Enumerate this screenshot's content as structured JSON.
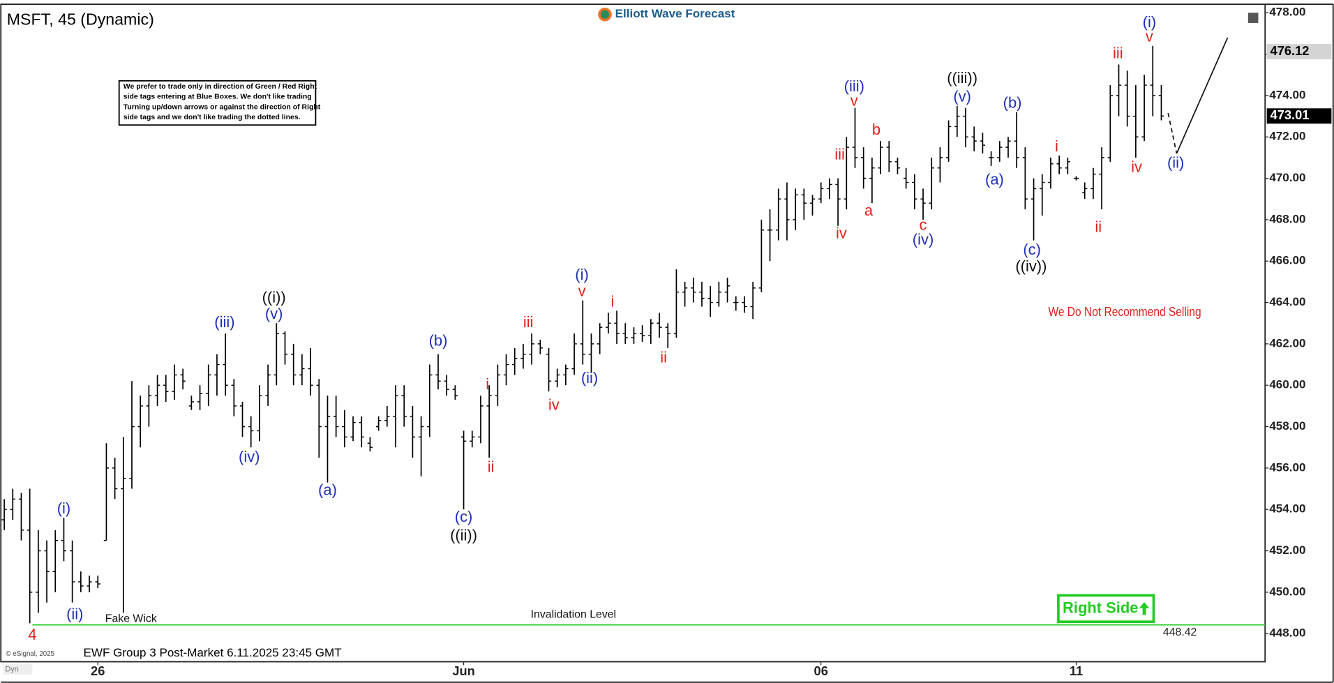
{
  "chart_data": {
    "type": "ohlc",
    "title": "MSFT, 45 (Dynamic)",
    "brand": "Elliott Wave Forecast",
    "footer": "EWF Group 3 Post-Market 6.11.2025 23:45 GMT",
    "copyright": "© eSignal, 2025",
    "mode": "Dyn",
    "disclaimer": [
      "We prefer to trade only in direction of Green / Red Right",
      "side tags entering at Blue Boxes. We don't like trading",
      "Turning up/down arrows or against the direction of Right",
      "side tags and we don't like trading the dotted lines."
    ],
    "right_side": "Right Side",
    "bar_color": "#000000",
    "ylim": [
      446.64,
      478.41
    ],
    "xlim": [
      -0.5,
      148.2
    ],
    "yticks": [
      {
        "value": 448,
        "label": "448.00"
      },
      {
        "value": 450,
        "label": "450.00"
      },
      {
        "value": 452,
        "label": "452.00"
      },
      {
        "value": 454,
        "label": "454.00"
      },
      {
        "value": 456,
        "label": "456.00"
      },
      {
        "value": 458,
        "label": "458.00"
      },
      {
        "value": 460,
        "label": "460.00"
      },
      {
        "value": 462,
        "label": "462.00"
      },
      {
        "value": 464,
        "label": "464.00"
      },
      {
        "value": 466,
        "label": "466.00"
      },
      {
        "value": 468,
        "label": "468.00"
      },
      {
        "value": 470,
        "label": "470.00"
      },
      {
        "value": 472,
        "label": "472.00"
      },
      {
        "value": 474,
        "label": "474.00"
      },
      {
        "value": 476,
        "label": "476.00"
      },
      {
        "value": 478,
        "label": "478.00"
      }
    ],
    "xticks": [
      {
        "value": 11,
        "label": "26"
      },
      {
        "value": 54,
        "label": "Jun"
      },
      {
        "value": 96,
        "label": "06"
      },
      {
        "value": 126,
        "label": "11"
      }
    ],
    "ohlc": [
      [
        453.5,
        454.5,
        453,
        454
      ],
      [
        454,
        455,
        453.5,
        454.5
      ],
      [
        454.5,
        454.8,
        452.5,
        453
      ],
      [
        453,
        455,
        448.5,
        450
      ],
      [
        450,
        453,
        449,
        452
      ],
      [
        452,
        452.5,
        449.5,
        451
      ],
      [
        451,
        453,
        450,
        452.5
      ],
      [
        452.5,
        453.6,
        451.5,
        452
      ],
      [
        452,
        452.5,
        449.5,
        450.5
      ],
      [
        450.5,
        451,
        450,
        450.3
      ],
      [
        450.3,
        450.8,
        450,
        450.5
      ],
      [
        450.5,
        450.8,
        450.2,
        450.4
      ],
      [
        452.5,
        457.2,
        452.5,
        456
      ],
      [
        456,
        456.5,
        454.5,
        455
      ],
      [
        455,
        457.5,
        449,
        455.5
      ],
      [
        455.5,
        460.2,
        455,
        458
      ],
      [
        458,
        459.5,
        457,
        459
      ],
      [
        459,
        460,
        458,
        459.5
      ],
      [
        459.5,
        460.5,
        459,
        460
      ],
      [
        460,
        460.5,
        459.2,
        459.7
      ],
      [
        459.7,
        461,
        459.3,
        460.5
      ],
      [
        460.5,
        460.8,
        459.8,
        460.2
      ],
      [
        459,
        459.5,
        458.8,
        459.2
      ],
      [
        459.2,
        460,
        458.8,
        459.6
      ],
      [
        459.6,
        461,
        459,
        460.5
      ],
      [
        460.5,
        461.5,
        459.5,
        461
      ],
      [
        461,
        462.5,
        459.5,
        460
      ],
      [
        460,
        460.3,
        458.5,
        459
      ],
      [
        459,
        459.2,
        457.5,
        458
      ],
      [
        458,
        458.5,
        457,
        457.8
      ],
      [
        457.8,
        460,
        457.3,
        459.5
      ],
      [
        459.5,
        461,
        459,
        460.5
      ],
      [
        460.5,
        463,
        460,
        462.5
      ],
      [
        462.5,
        462.6,
        461,
        461.5
      ],
      [
        461.5,
        462,
        460,
        460.5
      ],
      [
        460.5,
        461.5,
        460,
        460.8
      ],
      [
        460.8,
        461.8,
        459.5,
        460
      ],
      [
        460,
        460.3,
        456.5,
        458
      ],
      [
        458,
        459.5,
        455.3,
        458.5
      ],
      [
        458.5,
        459.5,
        457.5,
        458
      ],
      [
        458,
        458.8,
        457,
        457.5
      ],
      [
        457.5,
        458.5,
        457.3,
        458.2
      ],
      [
        458.2,
        458.5,
        457,
        457.5
      ],
      [
        457.2,
        457.5,
        456.8,
        457
      ],
      [
        458,
        458.5,
        457.8,
        458.3
      ],
      [
        458.3,
        459,
        458,
        458.5
      ],
      [
        458.5,
        460,
        457,
        459.5
      ],
      [
        459.5,
        460,
        458,
        458.5
      ],
      [
        458.5,
        459,
        456.5,
        457.5
      ],
      [
        457.5,
        458.5,
        455.6,
        458
      ],
      [
        458,
        461,
        457.5,
        460.5
      ],
      [
        460.5,
        461.5,
        459.8,
        460.2
      ],
      [
        460.2,
        460.5,
        459.5,
        459.8
      ],
      [
        459.8,
        460,
        459.3,
        459.5
      ],
      [
        457.5,
        457.8,
        454,
        457.3
      ],
      [
        457.3,
        457.8,
        457,
        457.5
      ],
      [
        457.5,
        459.5,
        457.2,
        459
      ],
      [
        459,
        460,
        456.5,
        459.5
      ],
      [
        459.5,
        461,
        459,
        460.5
      ],
      [
        460.5,
        461.5,
        460,
        461
      ],
      [
        461,
        461.8,
        460.5,
        461.3
      ],
      [
        461.3,
        462,
        460.8,
        461.5
      ],
      [
        461.5,
        462.5,
        461,
        462
      ],
      [
        462,
        462.2,
        461.5,
        461.8
      ],
      [
        461.5,
        461.8,
        459.7,
        460.2
      ],
      [
        460.2,
        460.8,
        459.9,
        460.5
      ],
      [
        460.5,
        461,
        460,
        460.8
      ],
      [
        460.8,
        462.5,
        460.5,
        462
      ],
      [
        462,
        464.1,
        461,
        461.5
      ],
      [
        461.5,
        462.5,
        460.6,
        462
      ],
      [
        462,
        463,
        461.5,
        462.8
      ],
      [
        462.8,
        463.5,
        462.5,
        463
      ],
      [
        463,
        463.6,
        462,
        462.5
      ],
      [
        462.5,
        463,
        462,
        462.3
      ],
      [
        462.3,
        462.8,
        462,
        462.5
      ],
      [
        462.5,
        462.9,
        462.1,
        462.4
      ],
      [
        462.4,
        463.2,
        462,
        463
      ],
      [
        463,
        463.5,
        462.3,
        462.8
      ],
      [
        462.8,
        463,
        461.8,
        462.5
      ],
      [
        462.5,
        465.6,
        462.3,
        464.5
      ],
      [
        464.5,
        465,
        463.8,
        464.7
      ],
      [
        464.7,
        465.2,
        464,
        464.5
      ],
      [
        464.5,
        465,
        463.8,
        464.2
      ],
      [
        464.2,
        464.8,
        463.3,
        464
      ],
      [
        464,
        465,
        463.8,
        464.5
      ],
      [
        464.5,
        465.2,
        464,
        464.8
      ],
      [
        464,
        464.3,
        463.6,
        464
      ],
      [
        464,
        464.3,
        463.5,
        463.8
      ],
      [
        463.8,
        465,
        463.2,
        464.7
      ],
      [
        464.7,
        468,
        464.5,
        467.5
      ],
      [
        467.5,
        468.5,
        466,
        467.5
      ],
      [
        467.5,
        469.5,
        467,
        469
      ],
      [
        469,
        469.8,
        467,
        468
      ],
      [
        468,
        469.5,
        467.5,
        469.2
      ],
      [
        469.2,
        469.5,
        468,
        468.8
      ],
      [
        468.8,
        469.2,
        468.2,
        469
      ],
      [
        469,
        469.8,
        468.8,
        469.5
      ],
      [
        469.5,
        470,
        469,
        469.7
      ],
      [
        469.7,
        470,
        467.7,
        469
      ],
      [
        469,
        472,
        468.5,
        471.5
      ],
      [
        471.5,
        473.4,
        470.5,
        471
      ],
      [
        471,
        471.5,
        469.5,
        470
      ],
      [
        470,
        471,
        468.8,
        470.5
      ],
      [
        470.5,
        471.8,
        470.2,
        471.5
      ],
      [
        471.5,
        471.8,
        470.3,
        470.8
      ],
      [
        470.8,
        471,
        470.2,
        470.5
      ],
      [
        470,
        470.5,
        469.5,
        469.8
      ],
      [
        469.8,
        470.2,
        468.5,
        469
      ],
      [
        469,
        469.5,
        468,
        468.8
      ],
      [
        468.8,
        471,
        468.5,
        470.5
      ],
      [
        470.5,
        471.5,
        469.8,
        471
      ],
      [
        471,
        472.8,
        470.8,
        472.5
      ],
      [
        472.5,
        473.5,
        472,
        473
      ],
      [
        473,
        473.4,
        471.5,
        472
      ],
      [
        472,
        472.5,
        471.3,
        471.8
      ],
      [
        471.8,
        472.2,
        471.2,
        471.6
      ],
      [
        471,
        471.3,
        470.6,
        471
      ],
      [
        471,
        471.8,
        470.8,
        471.5
      ],
      [
        471.5,
        472,
        471,
        471.8
      ],
      [
        471.8,
        473.2,
        470.5,
        471
      ],
      [
        471,
        471.5,
        468.5,
        469
      ],
      [
        469,
        470,
        467,
        469.5
      ],
      [
        469.5,
        470.2,
        468.2,
        469.8
      ],
      [
        469.8,
        471,
        469.5,
        470.7
      ],
      [
        470.7,
        471.1,
        470.2,
        470.5
      ],
      [
        470.5,
        471,
        470.2,
        470.8
      ],
      [
        470,
        470.1,
        469.9,
        470
      ],
      [
        469.3,
        469.8,
        469,
        469.5
      ],
      [
        469.5,
        470.5,
        469,
        470.2
      ],
      [
        470.2,
        471.5,
        468.5,
        471
      ],
      [
        471,
        474.5,
        470.8,
        474
      ],
      [
        474,
        475.5,
        473,
        474.5
      ],
      [
        474.5,
        475.2,
        472.5,
        473
      ],
      [
        473,
        474.5,
        471,
        472
      ],
      [
        472,
        475,
        471.8,
        474.5
      ],
      [
        474.5,
        476.4,
        473,
        474
      ],
      [
        474,
        474.5,
        472.8,
        473.01
      ]
    ],
    "annotations": [
      {
        "text": "4",
        "x": 3.3,
        "y": 447.9,
        "color": "#e0201b"
      },
      {
        "text": "(i)",
        "x": 7,
        "y": 454.0,
        "color": "#1f2fb8"
      },
      {
        "text": "(ii)",
        "x": 8.3,
        "y": 448.9,
        "color": "#1f2fb8"
      },
      {
        "text": "Fake Wick",
        "x": 14.9,
        "y": 448.7,
        "color": "#111111"
      },
      {
        "text": "(iii)",
        "x": 25.9,
        "y": 463.0,
        "color": "#1f2fb8"
      },
      {
        "text": "(iv)",
        "x": 28.8,
        "y": 456.5,
        "color": "#1f2fb8"
      },
      {
        "text": "((i))",
        "x": 31.7,
        "y": 464.2,
        "color": "#111111"
      },
      {
        "text": "(v)",
        "x": 31.7,
        "y": 463.4,
        "color": "#1f2fb8"
      },
      {
        "text": "(a)",
        "x": 38,
        "y": 454.9,
        "color": "#1f2fb8"
      },
      {
        "text": "(b)",
        "x": 51,
        "y": 462.1,
        "color": "#1f2fb8"
      },
      {
        "text": "(c)",
        "x": 54,
        "y": 453.6,
        "color": "#1f2fb8"
      },
      {
        "text": "((ii))",
        "x": 54,
        "y": 452.7,
        "color": "#111111"
      },
      {
        "text": "i",
        "x": 56.8,
        "y": 460.0,
        "color": "#e0201b"
      },
      {
        "text": "ii",
        "x": 57.2,
        "y": 456.0,
        "color": "#e0201b"
      },
      {
        "text": "iii",
        "x": 61.6,
        "y": 463.0,
        "color": "#e0201b"
      },
      {
        "text": "iv",
        "x": 64.6,
        "y": 459.0,
        "color": "#e0201b"
      },
      {
        "text": "(i)",
        "x": 67.9,
        "y": 465.3,
        "color": "#1f2fb8"
      },
      {
        "text": "v",
        "x": 67.9,
        "y": 464.5,
        "color": "#e0201b"
      },
      {
        "text": "(ii)",
        "x": 68.8,
        "y": 460.3,
        "color": "#1f2fb8"
      },
      {
        "text": "i",
        "x": 71.5,
        "y": 464.0,
        "color": "#e0201b"
      },
      {
        "text": "ii",
        "x": 77.5,
        "y": 461.3,
        "color": "#e0201b"
      },
      {
        "text": "(iii)",
        "x": 99.9,
        "y": 474.4,
        "color": "#1f2fb8"
      },
      {
        "text": "v",
        "x": 99.9,
        "y": 473.7,
        "color": "#e0201b"
      },
      {
        "text": "iii",
        "x": 98.2,
        "y": 471.1,
        "color": "#e0201b"
      },
      {
        "text": "iv",
        "x": 98.4,
        "y": 467.3,
        "color": "#e0201b"
      },
      {
        "text": "b",
        "x": 102.5,
        "y": 472.3,
        "color": "#e0201b"
      },
      {
        "text": "a",
        "x": 101.6,
        "y": 468.4,
        "color": "#e0201b"
      },
      {
        "text": "c",
        "x": 108,
        "y": 467.7,
        "color": "#e0201b"
      },
      {
        "text": "(iv)",
        "x": 108,
        "y": 467.0,
        "color": "#1f2fb8"
      },
      {
        "text": "((iii))",
        "x": 112.6,
        "y": 474.8,
        "color": "#111111"
      },
      {
        "text": "(v)",
        "x": 112.6,
        "y": 473.9,
        "color": "#1f2fb8"
      },
      {
        "text": "(b)",
        "x": 118.5,
        "y": 473.6,
        "color": "#1f2fb8"
      },
      {
        "text": "(a)",
        "x": 116.4,
        "y": 469.9,
        "color": "#1f2fb8"
      },
      {
        "text": "(c)",
        "x": 120.8,
        "y": 466.5,
        "color": "#1f2fb8"
      },
      {
        "text": "((iv))",
        "x": 120.7,
        "y": 465.7,
        "color": "#111111"
      },
      {
        "text": "i",
        "x": 123.7,
        "y": 471.5,
        "color": "#e0201b"
      },
      {
        "text": "ii",
        "x": 128.6,
        "y": 467.6,
        "color": "#e0201b"
      },
      {
        "text": "iii",
        "x": 130.9,
        "y": 476.0,
        "color": "#e0201b"
      },
      {
        "text": "iv",
        "x": 133.1,
        "y": 470.5,
        "color": "#e0201b"
      },
      {
        "text": "(i)",
        "x": 134.6,
        "y": 477.5,
        "color": "#1f2fb8"
      },
      {
        "text": "v",
        "x": 134.6,
        "y": 476.8,
        "color": "#e0201b"
      },
      {
        "text": "(ii)",
        "x": 137.7,
        "y": 470.7,
        "color": "#1f2fb8"
      },
      {
        "text": "Invalidation Level",
        "x": 66.9,
        "y": 448.9,
        "color": "#111111"
      },
      {
        "text": "We Do Not Recommend Selling",
        "x": 131.7,
        "y": 463.5,
        "color": "#e0201b"
      }
    ],
    "projection": {
      "x": [
        136.8,
        137.8,
        143.8
      ],
      "y": [
        473.15,
        471.2,
        476.8
      ]
    },
    "invalidation": {
      "value": 448.42,
      "color": "#22cc22"
    },
    "price_tags": [
      {
        "value": 476.12,
        "color": "#d4d4d4"
      },
      {
        "value": 473.01,
        "color": "#000000"
      }
    ]
  }
}
